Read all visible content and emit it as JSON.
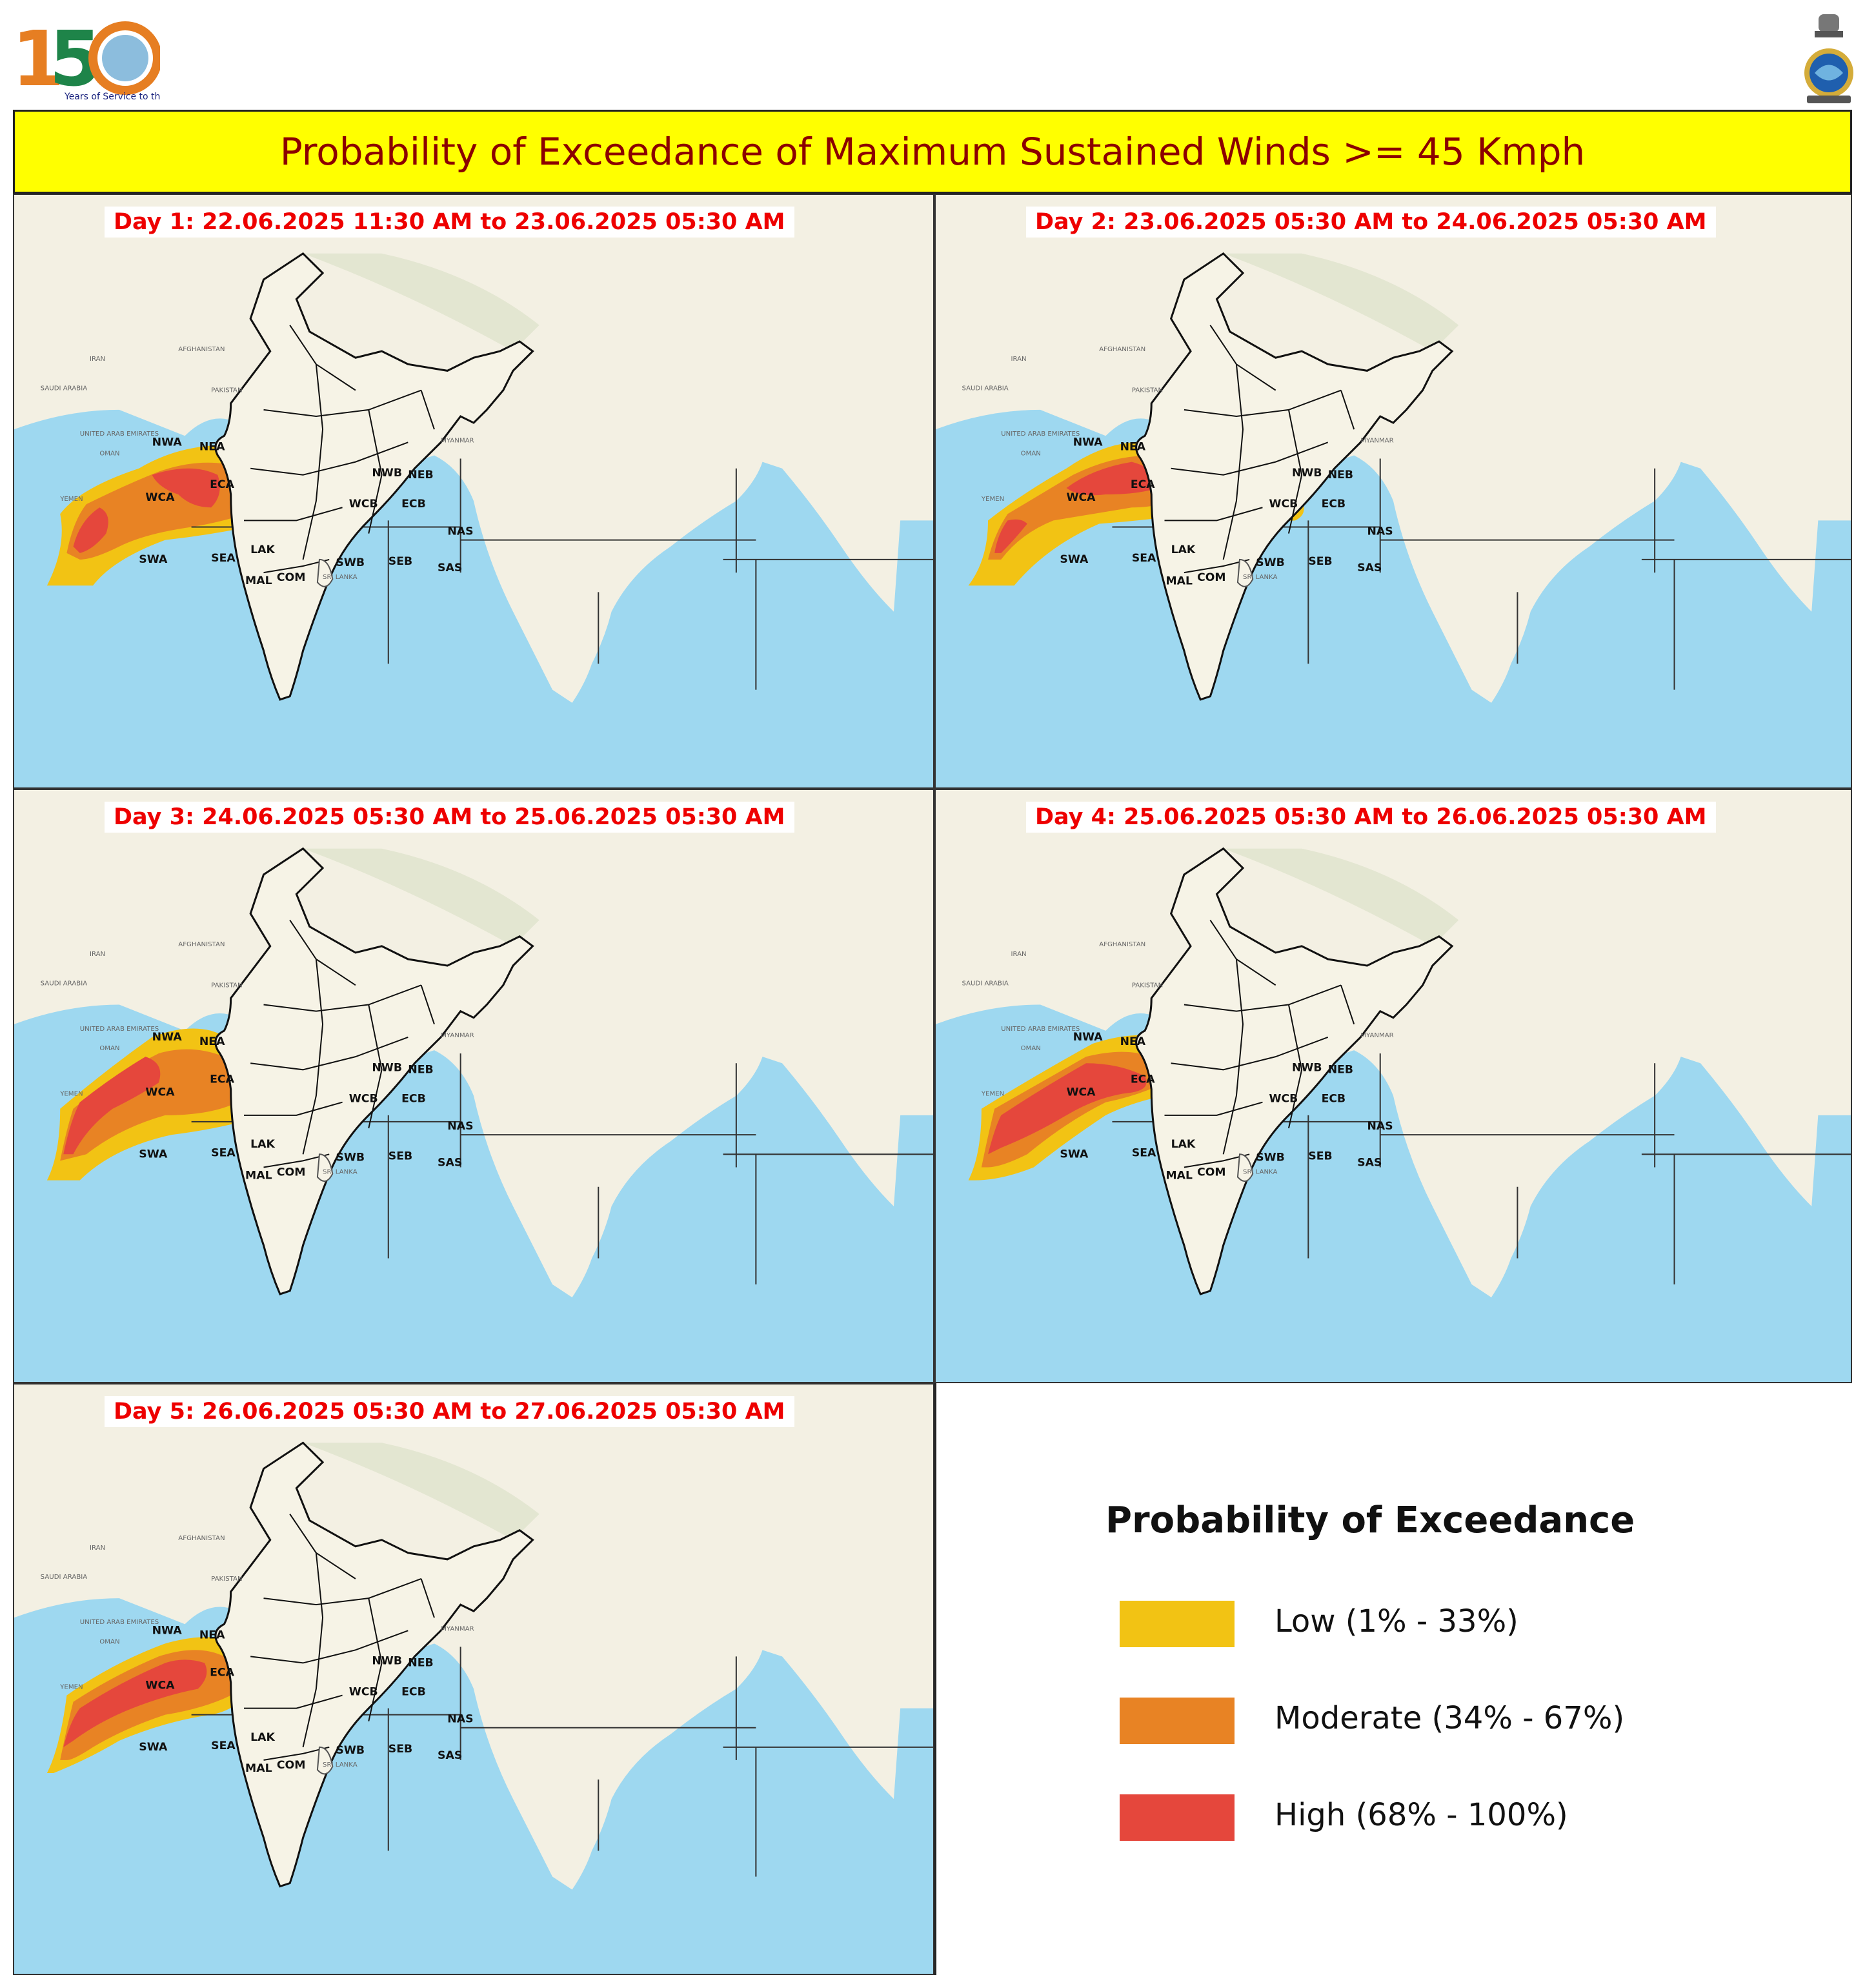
{
  "header": {
    "title": "Probability of Exceedance of Maximum Sustained Winds >= 45 Kmph",
    "logo_number": "150",
    "logo_caption": "Years of Service to the Nation",
    "emblem_icon": "national-emblem-icon"
  },
  "colors": {
    "low": "#f2c314",
    "moderate": "#e88324",
    "high": "#e5473c",
    "sea": "#9ed8f0",
    "land": "#f3f0e3",
    "title_bg": "#ffff00",
    "title_text": "#8b0000",
    "day_label": "#ee0000"
  },
  "map_labels": {
    "regions": [
      "NWA",
      "NEA",
      "ECA",
      "WCA",
      "SWA",
      "SEA",
      "LAK",
      "MAL",
      "COM",
      "SWB",
      "SEB",
      "WCB",
      "ECB",
      "NWB",
      "NEB",
      "NAS",
      "SAS"
    ],
    "countries": [
      "IRAN",
      "AFGHANISTAN",
      "PAKISTAN",
      "YEMEN",
      "OMAN",
      "UNITED ARAB EMIRATES",
      "SAUDI ARABIA",
      "MYANMAR",
      "SRI LANKA"
    ]
  },
  "panels": [
    {
      "id": "day1",
      "label": "Day 1: 22.06.2025 11:30 AM to 23.06.2025 05:30 AM"
    },
    {
      "id": "day2",
      "label": "Day 2: 23.06.2025 05:30 AM to 24.06.2025 05:30 AM"
    },
    {
      "id": "day3",
      "label": "Day 3: 24.06.2025 05:30 AM to 25.06.2025 05:30 AM"
    },
    {
      "id": "day4",
      "label": "Day 4: 25.06.2025 05:30 AM to 26.06.2025 05:30 AM"
    },
    {
      "id": "day5",
      "label": "Day 5: 26.06.2025 05:30 AM to 27.06.2025 05:30 AM"
    }
  ],
  "legend": {
    "title": "Probability of Exceedance",
    "items": [
      {
        "label": "Low (1% - 33%)",
        "color": "#f2c314"
      },
      {
        "label": "Moderate (34% - 67%)",
        "color": "#e88324"
      },
      {
        "label": "High (68% - 100%)",
        "color": "#e5473c"
      }
    ]
  }
}
